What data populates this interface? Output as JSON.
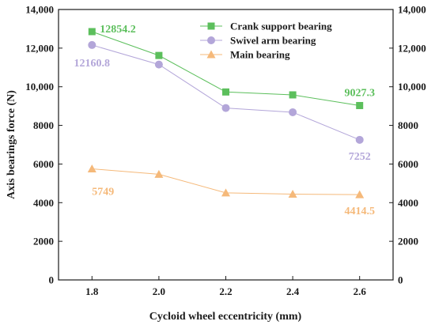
{
  "chart_data": {
    "type": "line",
    "title": "",
    "xlabel": "Cycloid wheel eccentricity (mm)",
    "ylabel": "Axis bearings force (N)",
    "x": [
      1.8,
      2.0,
      2.2,
      2.4,
      2.6
    ],
    "x_tick_labels": [
      "1.8",
      "2.0",
      "2.2",
      "2.4",
      "2.6"
    ],
    "xlim": [
      1.7,
      2.7
    ],
    "ylim": [
      0,
      14000
    ],
    "y_ticks": [
      0,
      2000,
      4000,
      6000,
      8000,
      10000,
      12000,
      14000
    ],
    "y_tick_labels": [
      "0",
      "2000",
      "4000",
      "6000",
      "8000",
      "10,000",
      "12,000",
      "14,000"
    ],
    "right_axis_mirror": true,
    "grid": false,
    "legend_position": "top-right",
    "series": [
      {
        "name": "Crank support bearing",
        "values": [
          12854.2,
          11620,
          9730,
          9580,
          9027.3
        ],
        "color": "#5cbf5c",
        "marker": "square",
        "data_labels": [
          {
            "index": 0,
            "text": "12854.2"
          },
          {
            "index": 4,
            "text": "9027.3"
          }
        ]
      },
      {
        "name": "Swivel arm bearing",
        "values": [
          12160.8,
          11150,
          8900,
          8680,
          7252
        ],
        "color": "#b3a6d9",
        "marker": "circle",
        "data_labels": [
          {
            "index": 0,
            "text": "12160.8"
          },
          {
            "index": 4,
            "text": "7252"
          }
        ]
      },
      {
        "name": "Main bearing",
        "values": [
          5749,
          5470,
          4510,
          4440,
          4414.5
        ],
        "color": "#f5b97a",
        "marker": "triangle",
        "data_labels": [
          {
            "index": 0,
            "text": "5749"
          },
          {
            "index": 4,
            "text": "4414.5"
          }
        ]
      }
    ]
  }
}
